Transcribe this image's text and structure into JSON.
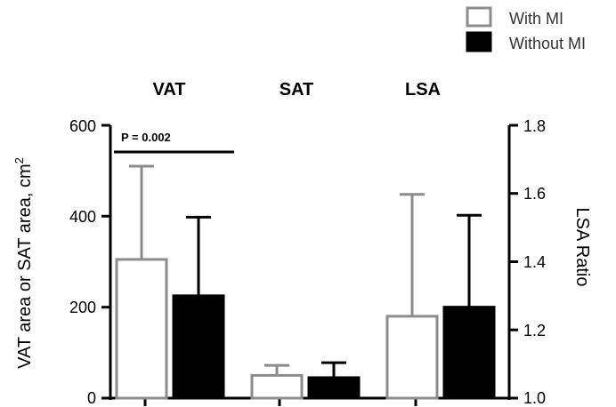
{
  "chart_data": {
    "type": "bar",
    "groups": [
      "VAT",
      "SAT",
      "LSA"
    ],
    "series": [
      {
        "name": "With MI",
        "values": [
          305,
          50,
          180
        ],
        "error_upper": [
          510,
          72,
          448
        ]
      },
      {
        "name": "Without MI",
        "values": [
          225,
          45,
          200
        ],
        "error_upper": [
          398,
          78,
          402
        ]
      }
    ],
    "left_axis": {
      "label_main": "VAT area or SAT area, cm",
      "label_sup": "2",
      "ylim": [
        0,
        600
      ],
      "ticks": [
        "0",
        "200",
        "400",
        "600"
      ]
    },
    "right_axis": {
      "label": "LSA Ratio",
      "ylim": [
        1.0,
        1.8
      ],
      "ticks": [
        "1.0",
        "1.2",
        "1.4",
        "1.6",
        "1.8"
      ]
    },
    "annotation": {
      "text": "P = 0.002"
    },
    "legend_position": "top-right",
    "colors": {
      "with_mi_fill": "#ffffff",
      "with_mi_stroke": "#8c8c8c",
      "without_mi_fill": "#000000",
      "axis": "#000000"
    }
  }
}
